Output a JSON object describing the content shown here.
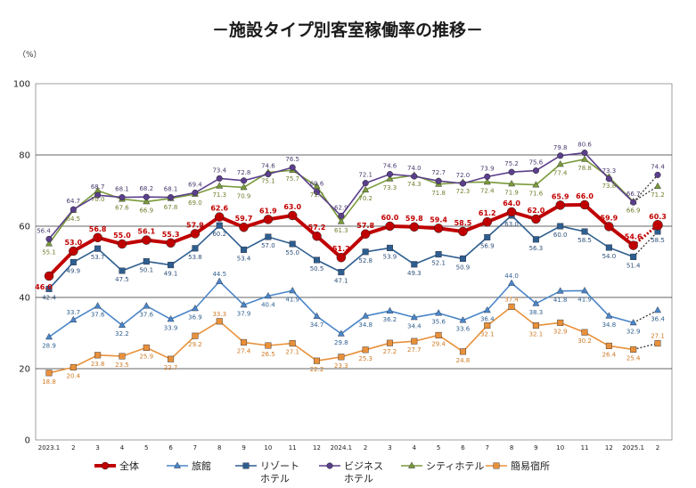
{
  "chart_data": {
    "type": "line",
    "title": "－施設タイプ別客室稼働率の推移－",
    "unit": "（%）",
    "ylim": [
      0,
      100
    ],
    "yticks": [
      0,
      20,
      40,
      60,
      80,
      100
    ],
    "grid": true,
    "legend_position": "bottom",
    "categories": [
      "2023.1",
      "2",
      "3",
      "4",
      "5",
      "6",
      "7",
      "8",
      "9",
      "10",
      "11",
      "12",
      "2024.1",
      "2",
      "3",
      "4",
      "5",
      "6",
      "7",
      "8",
      "9",
      "10",
      "11",
      "12",
      "2025.1",
      "2"
    ],
    "series": [
      {
        "name": "全体",
        "color": "#c00000",
        "marker": "circle",
        "main": true,
        "values": [
          46.0,
          53.0,
          56.8,
          55.0,
          56.1,
          55.3,
          57.9,
          62.6,
          59.7,
          61.9,
          63.0,
          57.2,
          51.2,
          57.8,
          60.0,
          59.8,
          59.4,
          58.5,
          61.2,
          64.0,
          62.0,
          65.9,
          66.0,
          59.9,
          54.6,
          60.3
        ],
        "labels": [
          "46.0",
          "53.0",
          "56.8",
          "55.0",
          "56.1",
          "55.3",
          "57.9",
          "62.6",
          "59.7",
          "61.9",
          "63.0",
          "57.2",
          "51.2",
          "57.8",
          "60.0",
          "59.8",
          "59.4",
          "58.5",
          "61.2",
          "64.0",
          "62.0",
          "65.9",
          "66.0",
          "59.9",
          "54.6",
          "60.3"
        ]
      },
      {
        "name": "旅館",
        "color": "#4a86c8",
        "marker": "triangle",
        "values": [
          28.9,
          33.7,
          37.6,
          32.2,
          37.6,
          33.9,
          36.9,
          44.5,
          37.9,
          40.4,
          41.9,
          34.7,
          29.8,
          34.8,
          36.2,
          34.4,
          35.6,
          33.6,
          36.4,
          44.0,
          38.3,
          41.8,
          41.9,
          34.8,
          32.9,
          36.4
        ],
        "labels": [
          "28.9",
          "33.7",
          "37.6",
          "32.2",
          "37.6",
          "33.9",
          "36.9",
          "44.5",
          "37.9",
          "40.4",
          "41.9",
          "34.7",
          "29.8",
          "34.8",
          "36.2",
          "34.4",
          "35.6",
          "33.6",
          "36.4",
          "44.0",
          "38.3",
          "41.8",
          "41.9",
          "34.8",
          "32.9",
          "36.4"
        ]
      },
      {
        "name": "リゾートホテル",
        "legend_lines": [
          "リゾート",
          "ホテル"
        ],
        "color": "#2e5e8f",
        "marker": "square",
        "values": [
          42.4,
          49.9,
          53.7,
          47.5,
          50.1,
          49.1,
          53.8,
          60.2,
          53.4,
          57.0,
          55.0,
          50.5,
          47.1,
          52.8,
          53.9,
          49.3,
          52.1,
          50.9,
          56.9,
          63.0,
          56.3,
          60.0,
          58.5,
          54.0,
          51.4,
          58.5
        ],
        "labels": [
          "42.4",
          "49.9",
          "53.7",
          "47.5",
          "50.1",
          "49.1",
          "53.8",
          "60.2",
          "53.4",
          "57.0",
          "55.0",
          "50.5",
          "47.1",
          "52.8",
          "53.9",
          "49.3",
          "52.1",
          "50.9",
          "56.9",
          "63.0",
          "56.3",
          "60.0",
          "58.5",
          "54.0",
          "51.4",
          "58.5"
        ]
      },
      {
        "name": "ビジネスホテル",
        "legend_lines": [
          "ビジネス",
          "ホテル"
        ],
        "color": "#5b3f8c",
        "marker": "circle",
        "values": [
          56.4,
          64.7,
          68.7,
          68.1,
          68.2,
          68.1,
          69.4,
          73.4,
          72.8,
          74.6,
          76.5,
          69.6,
          62.9,
          72.1,
          74.6,
          74.0,
          72.7,
          72.0,
          73.9,
          75.2,
          75.6,
          79.8,
          80.6,
          73.3,
          66.7,
          74.4
        ],
        "labels": [
          "56.4",
          "64.7",
          "68.7",
          "68.1",
          "68.2",
          "68.1",
          "69.4",
          "73.4",
          "72.8",
          "74.6",
          "76.5",
          "69.6",
          "62.9",
          "72.1",
          "74.6",
          "74.0",
          "72.7",
          "72.0",
          "73.9",
          "75.2",
          "75.6",
          "79.8",
          "80.6",
          "73.3",
          "66.7",
          "74.4"
        ]
      },
      {
        "name": "シティホテル",
        "color": "#7a9a3a",
        "marker": "triangle",
        "values": [
          55.1,
          64.5,
          70.0,
          67.6,
          66.9,
          67.8,
          69.0,
          71.3,
          70.9,
          75.1,
          75.7,
          71.2,
          61.3,
          70.2,
          73.3,
          74.3,
          71.8,
          72.3,
          72.4,
          71.9,
          71.6,
          77.4,
          78.8,
          73.8,
          66.9,
          71.2
        ],
        "labels": [
          "55.1",
          "64.5",
          "70.0",
          "67.6",
          "66.9",
          "67.8",
          "69.0",
          "71.3",
          "70.9",
          "75.1",
          "75.7",
          "71.2",
          "61.3",
          "70.2",
          "73.3",
          "74.3",
          "71.8",
          "72.3",
          "72.4",
          "71.9",
          "71.6",
          "77.4",
          "78.8",
          "73.8",
          "66.9",
          "71.2"
        ]
      },
      {
        "name": "簡易宿所",
        "color": "#e8913a",
        "marker": "square",
        "values": [
          18.8,
          20.4,
          23.8,
          23.5,
          25.9,
          22.7,
          29.2,
          33.3,
          27.4,
          26.5,
          27.1,
          22.2,
          23.3,
          25.3,
          27.2,
          27.7,
          29.4,
          24.8,
          32.1,
          37.4,
          32.1,
          32.9,
          30.2,
          26.4,
          25.4,
          27.1
        ],
        "labels": [
          "18.8",
          "20.4",
          "23.8",
          "23.5",
          "25.9",
          "22.7",
          "29.2",
          "33.3",
          "27.4",
          "26.5",
          "27.1",
          "22.2",
          "23.3",
          "25.3",
          "27.2",
          "27.7",
          "29.4",
          "24.8",
          "32.1",
          "37.4",
          "32.1",
          "32.9",
          "30.2",
          "26.4",
          "25.4",
          "27.1"
        ]
      }
    ],
    "last_point_dotted": true
  }
}
